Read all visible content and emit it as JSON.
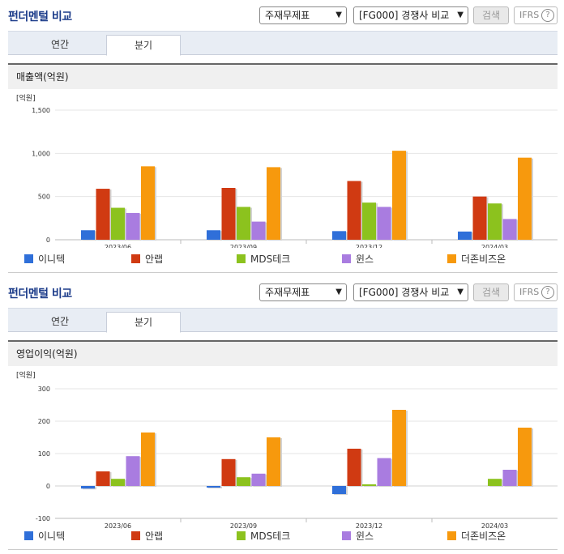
{
  "panels": [
    {
      "header": {
        "title": "펀더멘털 비교",
        "statement_select": "주재무제표",
        "company_select": "[FG000] 경쟁사 비교",
        "search_button": "검색",
        "ifrs_label": "IFRS",
        "help_icon": "?"
      },
      "tabs": [
        {
          "label": "연간"
        },
        {
          "label": "분기"
        }
      ],
      "subtitle": "매출액(억원)",
      "chart_data": {
        "type": "bar",
        "ylabel": "[억원]",
        "ylim": [
          0,
          1500
        ],
        "yticks": [
          0,
          500,
          1000,
          1500
        ],
        "ytick_labels": [
          "0",
          "500",
          "1,000",
          "1,500"
        ],
        "categories": [
          "2023/06",
          "2023/09",
          "2023/12",
          "2024/03"
        ],
        "series": [
          {
            "name": "이니텍",
            "color": "#2f6fd9",
            "values": [
              110,
              110,
              100,
              95
            ]
          },
          {
            "name": "안랩",
            "color": "#d03a12",
            "values": [
              590,
              600,
              680,
              500
            ]
          },
          {
            "name": "MDS테크",
            "color": "#8cc21e",
            "values": [
              370,
              380,
              430,
              420
            ]
          },
          {
            "name": "윈스",
            "color": "#a97ce0",
            "values": [
              310,
              210,
              380,
              240
            ]
          },
          {
            "name": "더존비즈온",
            "color": "#f7990d",
            "values": [
              850,
              840,
              1030,
              950
            ]
          }
        ]
      }
    },
    {
      "header": {
        "title": "펀더멘털 비교",
        "statement_select": "주재무제표",
        "company_select": "[FG000] 경쟁사 비교",
        "search_button": "검색",
        "ifrs_label": "IFRS",
        "help_icon": "?"
      },
      "tabs": [
        {
          "label": "연간"
        },
        {
          "label": "분기"
        }
      ],
      "subtitle": "영업이익(억원)",
      "chart_data": {
        "type": "bar",
        "ylabel": "[억원]",
        "ylim": [
          -100,
          300
        ],
        "yticks": [
          -100,
          0,
          100,
          200,
          300
        ],
        "ytick_labels": [
          "-100",
          "0",
          "100",
          "200",
          "300"
        ],
        "categories": [
          "2023/06",
          "2023/09",
          "2023/12",
          "2024/03"
        ],
        "series": [
          {
            "name": "이니텍",
            "color": "#2f6fd9",
            "values": [
              -8,
              -5,
              -25,
              0
            ]
          },
          {
            "name": "안랩",
            "color": "#d03a12",
            "values": [
              45,
              83,
              115,
              0
            ]
          },
          {
            "name": "MDS테크",
            "color": "#8cc21e",
            "values": [
              22,
              27,
              5,
              22
            ]
          },
          {
            "name": "윈스",
            "color": "#a97ce0",
            "values": [
              92,
              38,
              86,
              50
            ]
          },
          {
            "name": "더존비즈온",
            "color": "#f7990d",
            "values": [
              165,
              150,
              235,
              180
            ]
          }
        ]
      }
    }
  ]
}
